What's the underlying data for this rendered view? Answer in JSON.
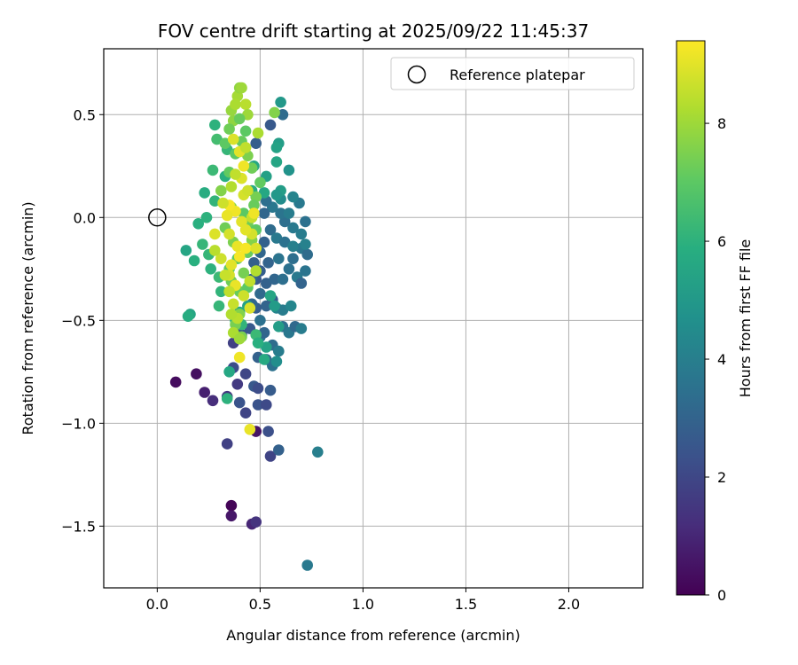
{
  "chart_data": {
    "type": "scatter",
    "title": "FOV centre drift starting at 2025/09/22 11:45:37",
    "xlabel": "Angular distance from reference (arcmin)",
    "ylabel": "Rotation from reference (arcmin)",
    "xlim": [
      -0.26,
      2.36
    ],
    "ylim": [
      -1.8,
      0.82
    ],
    "xticks": [
      0.0,
      0.5,
      1.0,
      1.5,
      2.0
    ],
    "xtick_labels": [
      "0.0",
      "0.5",
      "1.0",
      "1.5",
      "2.0"
    ],
    "yticks": [
      0.5,
      0.0,
      -0.5,
      -1.0,
      -1.5
    ],
    "ytick_labels": [
      "0.5",
      "0.0",
      "−0.5",
      "−1.0",
      "−1.5"
    ],
    "grid": true,
    "colormap": "viridis",
    "colorbar": {
      "label": "Hours from first FF file",
      "range": [
        0,
        9.4
      ],
      "ticks": [
        0,
        2,
        4,
        6,
        8
      ],
      "tick_labels": [
        "0",
        "2",
        "4",
        "6",
        "8"
      ]
    },
    "legend": {
      "location": "top-right",
      "entries": [
        {
          "label": "Reference platepar",
          "marker": "open-circle"
        }
      ]
    },
    "reference_point": {
      "x": 0.0,
      "y": 0.0
    },
    "point_fields": [
      "x",
      "y",
      "hours"
    ],
    "points": [
      [
        0.09,
        -0.8,
        0.3
      ],
      [
        0.19,
        -0.76,
        0.4
      ],
      [
        0.23,
        -0.85,
        0.8
      ],
      [
        0.27,
        -0.89,
        1.2
      ],
      [
        0.34,
        -0.87,
        1.5
      ],
      [
        0.36,
        -1.4,
        0.1
      ],
      [
        0.36,
        -1.45,
        0.6
      ],
      [
        0.46,
        -1.49,
        1.0
      ],
      [
        0.48,
        -1.48,
        1.4
      ],
      [
        0.34,
        -1.1,
        1.8
      ],
      [
        0.48,
        -1.04,
        0.5
      ],
      [
        0.55,
        -1.16,
        1.9
      ],
      [
        0.54,
        -1.04,
        2.3
      ],
      [
        0.59,
        -1.13,
        2.9
      ],
      [
        0.78,
        -1.14,
        4.0
      ],
      [
        0.73,
        -1.69,
        3.8
      ],
      [
        0.39,
        -0.81,
        1.6
      ],
      [
        0.43,
        -0.76,
        2.0
      ],
      [
        0.37,
        -0.73,
        2.2
      ],
      [
        0.4,
        -0.9,
        2.4
      ],
      [
        0.43,
        -0.95,
        1.9
      ],
      [
        0.47,
        -0.82,
        2.6
      ],
      [
        0.49,
        -0.83,
        2.2
      ],
      [
        0.49,
        -0.91,
        2.4
      ],
      [
        0.53,
        -0.91,
        2.1
      ],
      [
        0.55,
        -0.84,
        2.7
      ],
      [
        0.49,
        -0.68,
        2.9
      ],
      [
        0.53,
        -0.69,
        3.2
      ],
      [
        0.56,
        -0.72,
        3.5
      ],
      [
        0.56,
        -0.62,
        3.3
      ],
      [
        0.59,
        -0.65,
        3.9
      ],
      [
        0.58,
        -0.7,
        4.6
      ],
      [
        0.5,
        -0.58,
        3.6
      ],
      [
        0.52,
        -0.56,
        3.1
      ],
      [
        0.45,
        -0.54,
        2.6
      ],
      [
        0.41,
        -0.57,
        2.5
      ],
      [
        0.37,
        -0.61,
        1.8
      ],
      [
        0.39,
        -0.57,
        2.3
      ],
      [
        0.61,
        -0.53,
        3.4
      ],
      [
        0.64,
        -0.56,
        3.7
      ],
      [
        0.67,
        -0.53,
        3.2
      ],
      [
        0.7,
        -0.54,
        3.9
      ],
      [
        0.58,
        -0.44,
        4.2
      ],
      [
        0.61,
        -0.45,
        3.9
      ],
      [
        0.65,
        -0.43,
        4.3
      ],
      [
        0.53,
        -0.43,
        3.0
      ],
      [
        0.48,
        -0.44,
        2.8
      ],
      [
        0.5,
        -0.37,
        3.2
      ],
      [
        0.53,
        -0.32,
        2.9
      ],
      [
        0.57,
        -0.3,
        3.1
      ],
      [
        0.61,
        -0.3,
        3.4
      ],
      [
        0.64,
        -0.25,
        3.5
      ],
      [
        0.68,
        -0.29,
        3.8
      ],
      [
        0.72,
        -0.26,
        3.6
      ],
      [
        0.7,
        -0.32,
        3.0
      ],
      [
        0.66,
        -0.2,
        3.4
      ],
      [
        0.7,
        -0.15,
        3.7
      ],
      [
        0.73,
        -0.18,
        3.3
      ],
      [
        0.72,
        -0.13,
        4.1
      ],
      [
        0.7,
        -0.08,
        3.9
      ],
      [
        0.72,
        -0.02,
        3.5
      ],
      [
        0.66,
        -0.05,
        3.8
      ],
      [
        0.62,
        -0.02,
        3.4
      ],
      [
        0.6,
        0.02,
        3.6
      ],
      [
        0.64,
        0.02,
        3.9
      ],
      [
        0.69,
        0.07,
        3.8
      ],
      [
        0.66,
        0.1,
        4.2
      ],
      [
        0.6,
        0.09,
        4.5
      ],
      [
        0.56,
        0.05,
        3.7
      ],
      [
        0.53,
        0.08,
        3.4
      ],
      [
        0.52,
        0.02,
        3.1
      ],
      [
        0.55,
        -0.06,
        3.3
      ],
      [
        0.58,
        -0.1,
        3.8
      ],
      [
        0.62,
        -0.12,
        3.5
      ],
      [
        0.66,
        -0.14,
        4.0
      ],
      [
        0.52,
        -0.12,
        2.9
      ],
      [
        0.5,
        -0.17,
        3.1
      ],
      [
        0.54,
        -0.22,
        3.0
      ],
      [
        0.59,
        -0.2,
        3.6
      ],
      [
        0.5,
        -0.26,
        2.8
      ],
      [
        0.47,
        -0.22,
        2.9
      ],
      [
        0.48,
        -0.3,
        2.6
      ],
      [
        0.56,
        -0.4,
        3.3
      ],
      [
        0.5,
        -0.5,
        3.5
      ],
      [
        0.46,
        -0.42,
        3.1
      ],
      [
        0.46,
        -0.3,
        3.0
      ],
      [
        0.48,
        0.36,
        2.8
      ],
      [
        0.55,
        0.45,
        2.6
      ],
      [
        0.61,
        0.5,
        3.3
      ],
      [
        0.56,
        -0.4,
        2.7
      ],
      [
        0.6,
        0.56,
        5.0
      ],
      [
        0.59,
        0.36,
        5.2
      ],
      [
        0.58,
        0.34,
        5.4
      ],
      [
        0.58,
        0.27,
        5.5
      ],
      [
        0.64,
        0.23,
        4.8
      ],
      [
        0.6,
        0.13,
        5.2
      ],
      [
        0.58,
        0.11,
        5.0
      ],
      [
        0.53,
        0.2,
        5.3
      ],
      [
        0.52,
        0.12,
        5.6
      ],
      [
        0.46,
        0.13,
        5.8
      ],
      [
        0.47,
        0.25,
        5.6
      ],
      [
        0.28,
        0.45,
        6.0
      ],
      [
        0.29,
        0.38,
        6.5
      ],
      [
        0.34,
        0.33,
        6.2
      ],
      [
        0.33,
        0.2,
        5.9
      ],
      [
        0.27,
        0.23,
        6.3
      ],
      [
        0.23,
        0.12,
        5.8
      ],
      [
        0.28,
        0.08,
        6.1
      ],
      [
        0.24,
        0.0,
        6.0
      ],
      [
        0.2,
        -0.03,
        5.9
      ],
      [
        0.22,
        -0.13,
        6.2
      ],
      [
        0.14,
        -0.16,
        5.5
      ],
      [
        0.18,
        -0.21,
        5.9
      ],
      [
        0.25,
        -0.18,
        6.2
      ],
      [
        0.26,
        -0.25,
        6.0
      ],
      [
        0.3,
        -0.29,
        6.3
      ],
      [
        0.31,
        -0.36,
        6.1
      ],
      [
        0.3,
        -0.43,
        6.2
      ],
      [
        0.16,
        -0.47,
        5.5
      ],
      [
        0.15,
        -0.48,
        5.8
      ],
      [
        0.35,
        -0.75,
        5.6
      ],
      [
        0.34,
        -0.88,
        6.0
      ],
      [
        0.53,
        -0.63,
        5.4
      ],
      [
        0.52,
        -0.69,
        5.7
      ],
      [
        0.59,
        -0.53,
        5.2
      ],
      [
        0.57,
        -0.43,
        5.1
      ],
      [
        0.55,
        -0.38,
        5.5
      ],
      [
        0.44,
        -0.43,
        5.3
      ],
      [
        0.4,
        -0.46,
        5.6
      ],
      [
        0.38,
        -0.5,
        6.0
      ],
      [
        0.41,
        -0.52,
        6.1
      ],
      [
        0.48,
        -0.57,
        6.3
      ],
      [
        0.49,
        -0.61,
        5.9
      ],
      [
        0.41,
        -0.58,
        7.5
      ],
      [
        0.38,
        -0.52,
        7.4
      ],
      [
        0.4,
        -0.47,
        7.6
      ],
      [
        0.37,
        0.47,
        7.8
      ],
      [
        0.36,
        0.52,
        7.9
      ],
      [
        0.39,
        0.59,
        8.1
      ],
      [
        0.4,
        0.63,
        7.8
      ],
      [
        0.41,
        0.63,
        8.0
      ],
      [
        0.38,
        0.55,
        8.2
      ],
      [
        0.43,
        0.55,
        8.4
      ],
      [
        0.44,
        0.5,
        8.0
      ],
      [
        0.4,
        0.48,
        7.2
      ],
      [
        0.43,
        0.42,
        7.0
      ],
      [
        0.41,
        0.37,
        7.2
      ],
      [
        0.38,
        0.31,
        7.0
      ],
      [
        0.44,
        0.3,
        7.5
      ],
      [
        0.46,
        0.24,
        7.3
      ],
      [
        0.5,
        0.17,
        7.1
      ],
      [
        0.48,
        0.1,
        7.4
      ],
      [
        0.47,
        0.06,
        7.2
      ],
      [
        0.42,
        0.02,
        7.0
      ],
      [
        0.44,
        -0.03,
        7.3
      ],
      [
        0.48,
        -0.06,
        7.0
      ],
      [
        0.46,
        -0.11,
        7.6
      ],
      [
        0.44,
        -0.17,
        7.2
      ],
      [
        0.39,
        -0.2,
        7.0
      ],
      [
        0.35,
        -0.25,
        7.1
      ],
      [
        0.36,
        -0.31,
        7.3
      ],
      [
        0.4,
        -0.36,
        7.2
      ],
      [
        0.44,
        -0.34,
        7.0
      ],
      [
        0.42,
        -0.27,
        7.4
      ],
      [
        0.37,
        -0.12,
        7.5
      ],
      [
        0.33,
        -0.05,
        7.3
      ],
      [
        0.36,
        0.05,
        7.7
      ],
      [
        0.31,
        0.13,
        7.6
      ],
      [
        0.35,
        0.22,
        7.1
      ],
      [
        0.33,
        0.36,
        7.0
      ],
      [
        0.35,
        0.43,
        7.3
      ],
      [
        0.57,
        0.51,
        7.6
      ],
      [
        0.49,
        0.41,
        8.2
      ],
      [
        0.46,
        0.0,
        8.6
      ],
      [
        0.46,
        -0.08,
        8.8
      ],
      [
        0.42,
        0.11,
        8.8
      ],
      [
        0.41,
        0.19,
        8.9
      ],
      [
        0.42,
        0.25,
        9.2
      ],
      [
        0.4,
        0.32,
        9.0
      ],
      [
        0.37,
        0.38,
        8.9
      ],
      [
        0.43,
        0.34,
        8.5
      ],
      [
        0.41,
        -0.02,
        9.0
      ],
      [
        0.38,
        0.03,
        9.2
      ],
      [
        0.35,
        0.06,
        9.3
      ],
      [
        0.34,
        0.01,
        9.1
      ],
      [
        0.32,
        0.07,
        8.7
      ],
      [
        0.35,
        -0.08,
        8.8
      ],
      [
        0.39,
        -0.14,
        9.1
      ],
      [
        0.43,
        -0.15,
        9.3
      ],
      [
        0.48,
        -0.15,
        8.9
      ],
      [
        0.4,
        -0.19,
        9.3
      ],
      [
        0.36,
        -0.23,
        9.0
      ],
      [
        0.35,
        -0.28,
        8.8
      ],
      [
        0.38,
        -0.33,
        9.1
      ],
      [
        0.42,
        -0.38,
        8.7
      ],
      [
        0.37,
        -0.42,
        8.6
      ],
      [
        0.45,
        -0.44,
        8.9
      ],
      [
        0.43,
        -0.06,
        9.0
      ],
      [
        0.47,
        0.02,
        9.2
      ],
      [
        0.4,
        -0.68,
        9.2
      ],
      [
        0.45,
        -1.03,
        9.1
      ],
      [
        0.39,
        -0.49,
        8.4
      ],
      [
        0.37,
        -0.56,
        8.2
      ],
      [
        0.4,
        -0.59,
        8.0
      ],
      [
        0.35,
        -0.36,
        8.5
      ],
      [
        0.33,
        -0.28,
        8.6
      ],
      [
        0.31,
        -0.2,
        8.7
      ],
      [
        0.28,
        -0.08,
        8.9
      ],
      [
        0.28,
        -0.16,
        8.4
      ],
      [
        0.36,
        0.15,
        8.3
      ],
      [
        0.38,
        0.21,
        8.5
      ],
      [
        0.44,
        0.13,
        8.7
      ],
      [
        0.48,
        -0.26,
        8.3
      ],
      [
        0.45,
        -0.31,
        8.5
      ],
      [
        0.36,
        -0.47,
        8.3
      ]
    ]
  }
}
